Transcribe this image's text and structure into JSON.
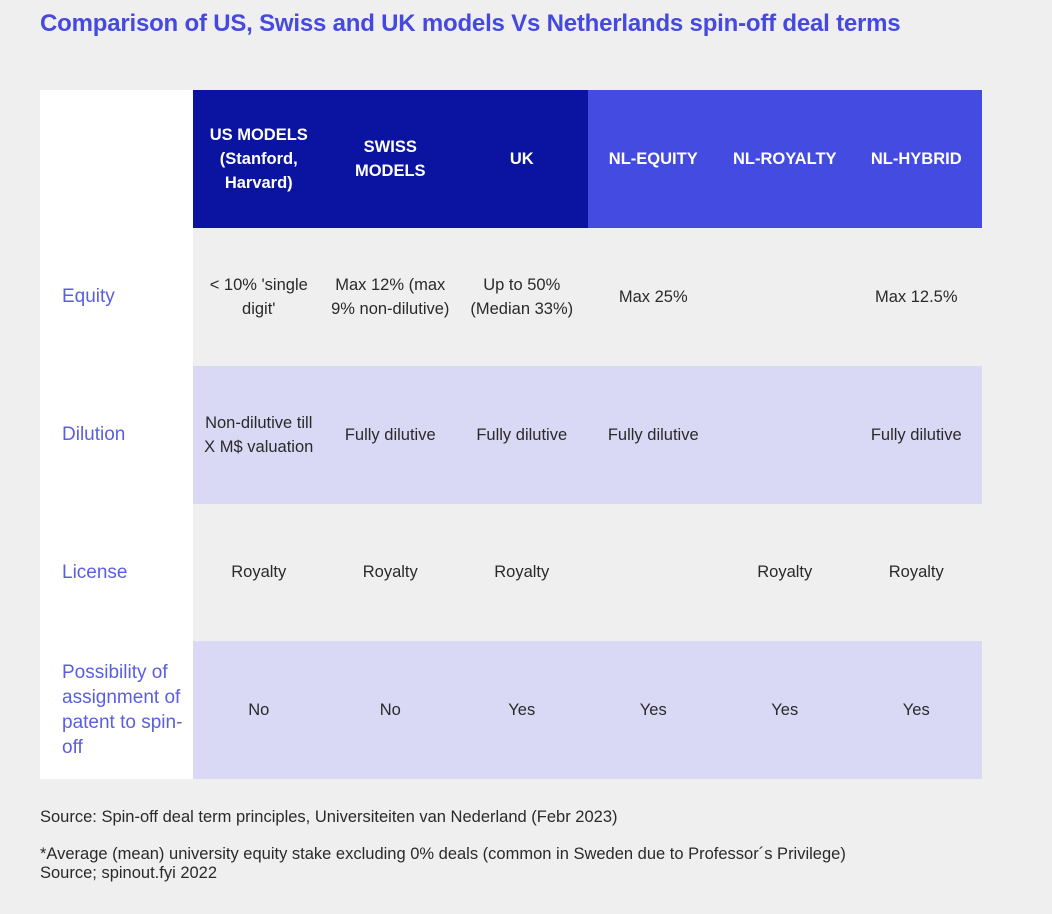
{
  "title": "Comparison of US, Swiss and UK models Vs Netherlands spin-off deal terms",
  "columns": [
    {
      "label": "US MODELS (Stanford, Harvard)",
      "group": "dark"
    },
    {
      "label": "SWISS MODELS",
      "group": "dark"
    },
    {
      "label": "UK",
      "group": "dark"
    },
    {
      "label": "NL-EQUITY",
      "group": "light"
    },
    {
      "label": "NL-ROYALTY",
      "group": "light"
    },
    {
      "label": "NL-HYBRID",
      "group": "light"
    }
  ],
  "rows": [
    {
      "label": "Equity",
      "cells": [
        "< 10% 'single digit'",
        "Max 12% (max 9% non-dilutive)",
        "Up to 50% (Median 33%)",
        "Max 25%",
        "",
        "Max 12.5%"
      ]
    },
    {
      "label": "Dilution",
      "cells": [
        "Non-dilutive till X M$ valuation",
        "Fully dilutive",
        "Fully dilutive",
        "Fully dilutive",
        "",
        "Fully dilutive"
      ]
    },
    {
      "label": "License",
      "cells": [
        "Royalty",
        "Royalty",
        "Royalty",
        "",
        "Royalty",
        "Royalty"
      ]
    },
    {
      "label": "Possibility of assignment of patent to spin-off",
      "cells": [
        "No",
        "No",
        "Yes",
        "Yes",
        "Yes",
        "Yes"
      ]
    }
  ],
  "source": "Source: Spin-off deal term principles, Universiteiten van Nederland (Febr 2023)",
  "footnote": {
    "line1": "*Average (mean) university equity stake excluding 0% deals (common in Sweden due to Professor´s Privilege)",
    "line2": "Source; spinout.fyi 2022"
  },
  "colors": {
    "title": "#4549e0",
    "header_dark": "#0a14a0",
    "header_light": "#434be0",
    "row_label": "#5a5fe0",
    "row_tint": "#d9d8f5",
    "background": "#efefef"
  }
}
